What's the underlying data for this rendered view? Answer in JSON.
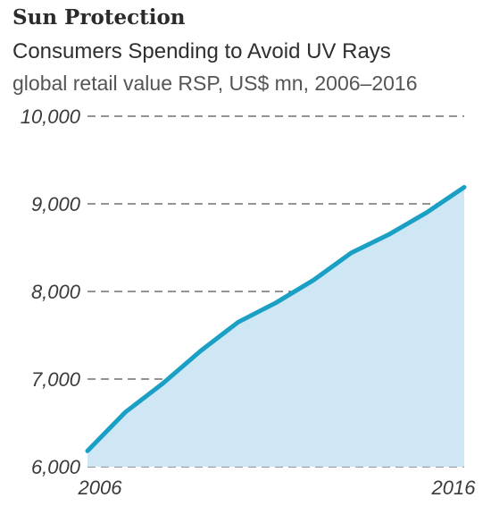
{
  "header": {
    "title": "Sun Protection",
    "subtitle": "Consumers Spending to Avoid UV Rays",
    "unit": "global retail value RSP, US$ mn, 2006–2016"
  },
  "colors": {
    "line": "#1aa0c4",
    "area": "#cfe6f4",
    "grid": "#555555"
  },
  "chart_data": {
    "type": "area",
    "title": "Sun Protection",
    "subtitle": "Consumers Spending to Avoid UV Rays",
    "ylabel": "global retail value RSP, US$ mn, 2006–2016",
    "x": [
      2006,
      2007,
      2008,
      2009,
      2010,
      2011,
      2012,
      2013,
      2014,
      2015,
      2016
    ],
    "values": [
      6180,
      6620,
      6950,
      7320,
      7650,
      7870,
      8130,
      8440,
      8650,
      8900,
      9190
    ],
    "xlim": [
      2006,
      2016
    ],
    "ylim": [
      6000,
      10000
    ],
    "yticks": [
      "6,000",
      "7,000",
      "8,000",
      "9,000",
      "10,000"
    ],
    "ytick_values": [
      6000,
      7000,
      8000,
      9000,
      10000
    ],
    "xticks": [
      "2006",
      "2016"
    ],
    "xtick_values": [
      2006,
      2016
    ],
    "grid": "dashed horizontal",
    "legend": "none"
  }
}
